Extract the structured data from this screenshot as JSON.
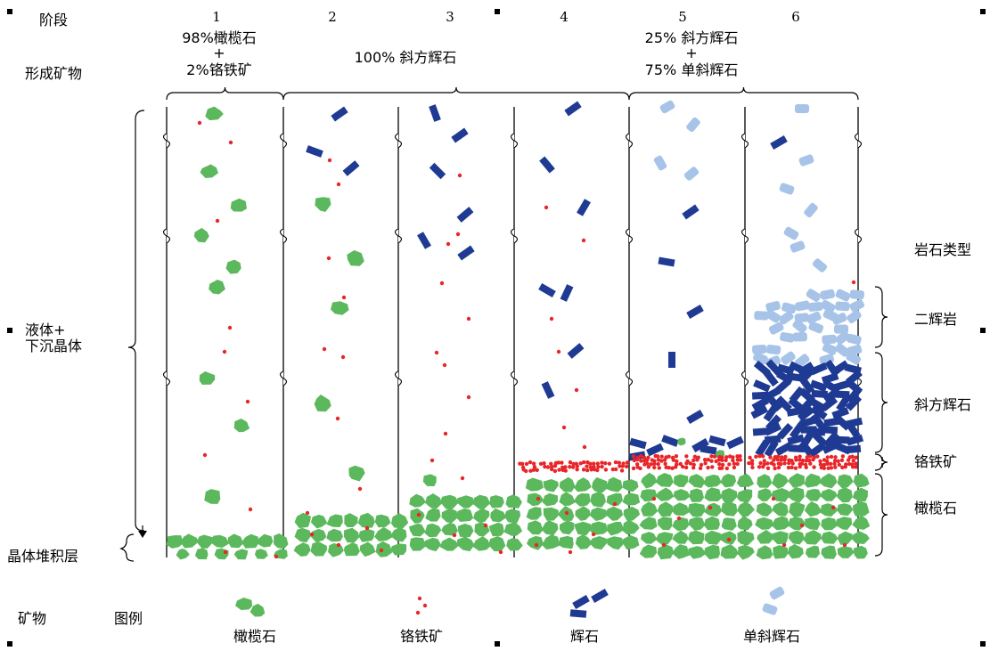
{
  "header": {
    "stage_label": "阶段",
    "mineral_label": "形成矿物"
  },
  "stages": [
    "1",
    "2",
    "3",
    "4",
    "5",
    "6"
  ],
  "minerals_formed": {
    "stage1_line1": "98%橄榄石",
    "stage1_plus": "+",
    "stage1_line2": "2%铬铁矿",
    "stage2to4": "100% 斜方辉石",
    "stage5_line1": "25% 斜方辉石",
    "stage5_plus": "+",
    "stage5_line2": "75% 单斜辉石"
  },
  "left_labels": {
    "liquid_line1": "液体+",
    "liquid_line2": "下沉晶体",
    "cumulate": "晶体堆积层"
  },
  "rock_types": {
    "title": "岩石类型",
    "items": [
      "二辉岩",
      "斜方辉石",
      "铬铁矿",
      "橄榄石"
    ]
  },
  "legend": {
    "mineral_label": "矿物",
    "legend_label": "图例",
    "items": [
      {
        "label": "橄榄石",
        "icon": "olivine-icon"
      },
      {
        "label": "铬铁矿",
        "icon": "chromite-icon"
      },
      {
        "label": "辉石",
        "icon": "pyroxene-icon"
      },
      {
        "label": "单斜辉石",
        "icon": "clinopyroxene-icon"
      }
    ]
  },
  "colors": {
    "olivine": "#5cb85c",
    "chromite": "#e8262a",
    "orthopyroxene": "#1f3a93",
    "clinopyroxene": "#a7c4e8"
  }
}
